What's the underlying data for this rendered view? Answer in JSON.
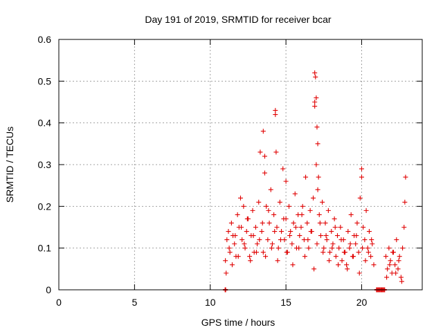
{
  "chart_data": {
    "type": "scatter",
    "title": "Day 191 of 2019, SRMTID for receiver bcar",
    "xlabel": "GPS time / hours",
    "ylabel": "SRMTID / TECUs",
    "xlim": [
      0,
      24
    ],
    "ylim": [
      0,
      0.6
    ],
    "x_ticks": [
      0,
      5,
      10,
      15,
      20
    ],
    "x_tick_labels": [
      "0",
      "5",
      "10",
      "15",
      "20"
    ],
    "y_ticks": [
      0,
      0.1,
      0.2,
      0.3,
      0.4,
      0.5,
      0.6
    ],
    "y_tick_labels": [
      "0",
      "0.1",
      "0.2",
      "0.3",
      "0.4",
      "0.5",
      "0.6"
    ],
    "grid": true,
    "marker": "+",
    "marker_color": "#e00000",
    "series": [
      {
        "name": "SRMTID",
        "color": "#e00000",
        "x": [
          11.0,
          11.1,
          11.2,
          11.3,
          11.4,
          11.5,
          11.6,
          11.7,
          11.8,
          11.9,
          12.0,
          12.1,
          12.2,
          12.3,
          12.4,
          12.5,
          12.6,
          12.7,
          12.8,
          12.9,
          13.0,
          13.1,
          13.2,
          13.3,
          13.4,
          13.5,
          13.6,
          13.7,
          13.8,
          13.9,
          14.0,
          14.1,
          14.2,
          14.3,
          14.4,
          14.5,
          14.6,
          14.7,
          14.8,
          14.9,
          15.0,
          15.1,
          15.2,
          15.3,
          15.4,
          15.5,
          15.6,
          15.7,
          15.8,
          15.9,
          16.0,
          16.1,
          16.2,
          16.3,
          16.4,
          16.5,
          16.6,
          16.7,
          16.8,
          16.9,
          17.0,
          17.1,
          17.2,
          17.3,
          17.4,
          17.5,
          17.6,
          17.7,
          17.8,
          17.9,
          18.0,
          18.1,
          18.2,
          18.3,
          18.4,
          18.5,
          18.6,
          18.7,
          18.8,
          18.9,
          19.0,
          19.1,
          19.2,
          19.3,
          19.4,
          19.5,
          19.6,
          19.7,
          19.8,
          19.9,
          20.0,
          20.1,
          20.2,
          20.3,
          20.4,
          20.5,
          20.6,
          20.7,
          20.8,
          21.6,
          21.7,
          21.8,
          21.9,
          22.0,
          22.1,
          22.2,
          22.3,
          22.4,
          22.5,
          22.6,
          22.7,
          22.8,
          11.05,
          11.25,
          11.45,
          11.65,
          11.85,
          12.05,
          12.25,
          12.45,
          12.65,
          12.85,
          13.05,
          13.25,
          13.45,
          13.65,
          13.85,
          14.05,
          14.25,
          14.45,
          14.65,
          14.85,
          15.05,
          15.25,
          15.45,
          15.65,
          15.85,
          16.05,
          16.25,
          16.45,
          16.65,
          16.85,
          17.05,
          17.25,
          17.45,
          17.65,
          17.85,
          18.05,
          18.25,
          18.45,
          18.65,
          18.85,
          19.05,
          19.25,
          19.45,
          19.65,
          19.85,
          20.05,
          20.25,
          20.45,
          20.65,
          21.65,
          21.85,
          22.05,
          22.25,
          22.45,
          22.65,
          13.5,
          13.6,
          14.3,
          14.35,
          16.9,
          16.95,
          17.0,
          16.9,
          17.05,
          17.1,
          17.15,
          15.0,
          20.0,
          22.9,
          22.85
        ],
        "y": [
          0.07,
          0.12,
          0.14,
          0.09,
          0.16,
          0.13,
          0.11,
          0.08,
          0.18,
          0.15,
          0.22,
          0.12,
          0.2,
          0.1,
          0.14,
          0.17,
          0.08,
          0.13,
          0.19,
          0.09,
          0.15,
          0.11,
          0.21,
          0.33,
          0.14,
          0.09,
          0.28,
          0.2,
          0.12,
          0.16,
          0.24,
          0.11,
          0.18,
          0.43,
          0.15,
          0.1,
          0.21,
          0.14,
          0.29,
          0.12,
          0.17,
          0.09,
          0.2,
          0.14,
          0.11,
          0.16,
          0.23,
          0.1,
          0.18,
          0.13,
          0.15,
          0.2,
          0.12,
          0.27,
          0.16,
          0.1,
          0.19,
          0.14,
          0.22,
          0.45,
          0.3,
          0.24,
          0.18,
          0.13,
          0.21,
          0.1,
          0.16,
          0.12,
          0.19,
          0.09,
          0.14,
          0.11,
          0.17,
          0.08,
          0.13,
          0.1,
          0.15,
          0.07,
          0.12,
          0.09,
          0.06,
          0.14,
          0.1,
          0.18,
          0.08,
          0.13,
          0.11,
          0.16,
          0.09,
          0.22,
          0.27,
          0.15,
          0.12,
          0.19,
          0.1,
          0.14,
          0.08,
          0.11,
          0.06,
          0.08,
          0.05,
          0.1,
          0.07,
          0.04,
          0.09,
          0.06,
          0.12,
          0.05,
          0.08,
          0.03,
          0.1,
          0.15,
          0.04,
          0.1,
          0.06,
          0.13,
          0.08,
          0.15,
          0.11,
          0.17,
          0.07,
          0.13,
          0.09,
          0.12,
          0.16,
          0.08,
          0.19,
          0.1,
          0.14,
          0.07,
          0.12,
          0.17,
          0.09,
          0.13,
          0.06,
          0.15,
          0.1,
          0.18,
          0.08,
          0.12,
          0.14,
          0.05,
          0.11,
          0.16,
          0.09,
          0.13,
          0.07,
          0.1,
          0.15,
          0.06,
          0.12,
          0.09,
          0.05,
          0.11,
          0.08,
          0.13,
          0.04,
          0.1,
          0.07,
          0.09,
          0.12,
          0.03,
          0.06,
          0.09,
          0.04,
          0.07,
          0.02,
          0.38,
          0.32,
          0.42,
          0.33,
          0.52,
          0.51,
          0.46,
          0.44,
          0.39,
          0.35,
          0.27,
          0.26,
          0.29,
          0.27,
          0.21
        ]
      }
    ],
    "baseline_markers": {
      "y": 0,
      "x": [
        11.0,
        21.0,
        21.1,
        21.2,
        21.3,
        21.4,
        21.5
      ]
    }
  }
}
